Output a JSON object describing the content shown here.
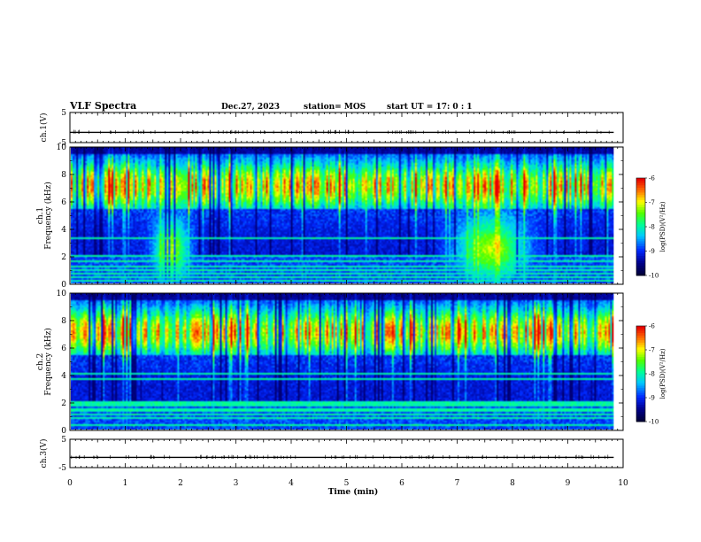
{
  "header": {
    "title": "VLF Spectra",
    "date": "Dec.27, 2023",
    "station": "station= MOS",
    "start": "start  UT =   17: 0  : 1"
  },
  "chart_data": [
    {
      "type": "line",
      "name": "ch.1 waveform",
      "ylabel": "ch.1(V)",
      "ylim": [
        -5,
        5
      ],
      "yticks": [
        {
          "v": 5,
          "label": "5"
        },
        {
          "v": -5,
          "label": "-5"
        }
      ],
      "xlim": [
        0,
        10
      ],
      "trace_level": -1.6,
      "x": [
        0,
        9.83
      ],
      "y": [
        -1.6,
        -1.6
      ]
    },
    {
      "type": "heatmap",
      "name": "ch.1 spectrogram",
      "ylabel_lines": [
        "ch.1",
        "Frequency  (kHz)"
      ],
      "xlim": [
        0,
        10
      ],
      "ylim": [
        0,
        10
      ],
      "data_x_end": 9.83,
      "yticks": [
        {
          "v": 0,
          "label": "0"
        },
        {
          "v": 2,
          "label": "2"
        },
        {
          "v": 4,
          "label": "4"
        },
        {
          "v": 6,
          "label": "6"
        },
        {
          "v": 8,
          "label": "8"
        },
        {
          "v": 10,
          "label": "10"
        }
      ],
      "hiss_bursts": [
        [
          1.8,
          0.3
        ],
        [
          7.6,
          0.6
        ]
      ],
      "narrowband_khz": [
        0.3,
        0.5,
        0.8,
        1.0,
        1.3,
        1.7,
        2.1,
        3.4
      ],
      "colorbar": {
        "label": "log(PSD)(V²/Hz)",
        "range": [
          -10,
          -6
        ],
        "ticks": [
          {
            "v": -6,
            "label": "-6"
          },
          {
            "v": -7,
            "label": "-7"
          },
          {
            "v": -8,
            "label": "-8"
          },
          {
            "v": -9,
            "label": "-9"
          },
          {
            "v": -10,
            "label": "-10"
          }
        ]
      }
    },
    {
      "type": "heatmap",
      "name": "ch.2 spectrogram",
      "ylabel_lines": [
        "ch.2",
        "Frequency  (kHz)"
      ],
      "xlim": [
        0,
        10
      ],
      "ylim": [
        0,
        10
      ],
      "data_x_end": 9.83,
      "yticks": [
        {
          "v": 0,
          "label": "0"
        },
        {
          "v": 2,
          "label": "2"
        },
        {
          "v": 4,
          "label": "4"
        },
        {
          "v": 6,
          "label": "6"
        },
        {
          "v": 8,
          "label": "8"
        },
        {
          "v": 10,
          "label": "10"
        }
      ],
      "hiss_bursts": [],
      "narrowband_khz": [
        0.4,
        0.9,
        1.2,
        1.5,
        1.8,
        2.0,
        3.8,
        4.2
      ],
      "colorbar": {
        "label": "log(PSD)(V²/Hz)",
        "range": [
          -10,
          -6
        ],
        "ticks": [
          {
            "v": -6,
            "label": "-6"
          },
          {
            "v": -7,
            "label": "-7"
          },
          {
            "v": -8,
            "label": "-8"
          },
          {
            "v": -9,
            "label": "-9"
          },
          {
            "v": -10,
            "label": "-10"
          }
        ]
      }
    },
    {
      "type": "line",
      "name": "ch.3 waveform",
      "ylabel": "ch.3(V)",
      "ylim": [
        -5,
        5
      ],
      "yticks": [
        {
          "v": 5,
          "label": "5"
        },
        {
          "v": -5,
          "label": "-5"
        }
      ],
      "xlim": [
        0,
        10
      ],
      "trace_level": -1.4,
      "x": [
        0,
        9.83
      ],
      "y": [
        -1.4,
        -1.4
      ],
      "xlabel": "Time  (min)",
      "xticks": [
        {
          "v": 0,
          "label": "0"
        },
        {
          "v": 1,
          "label": "1"
        },
        {
          "v": 2,
          "label": "2"
        },
        {
          "v": 3,
          "label": "3"
        },
        {
          "v": 4,
          "label": "4"
        },
        {
          "v": 5,
          "label": "5"
        },
        {
          "v": 6,
          "label": "6"
        },
        {
          "v": 7,
          "label": "7"
        },
        {
          "v": 8,
          "label": "8"
        },
        {
          "v": 9,
          "label": "9"
        },
        {
          "v": 10,
          "label": "10"
        }
      ]
    }
  ]
}
